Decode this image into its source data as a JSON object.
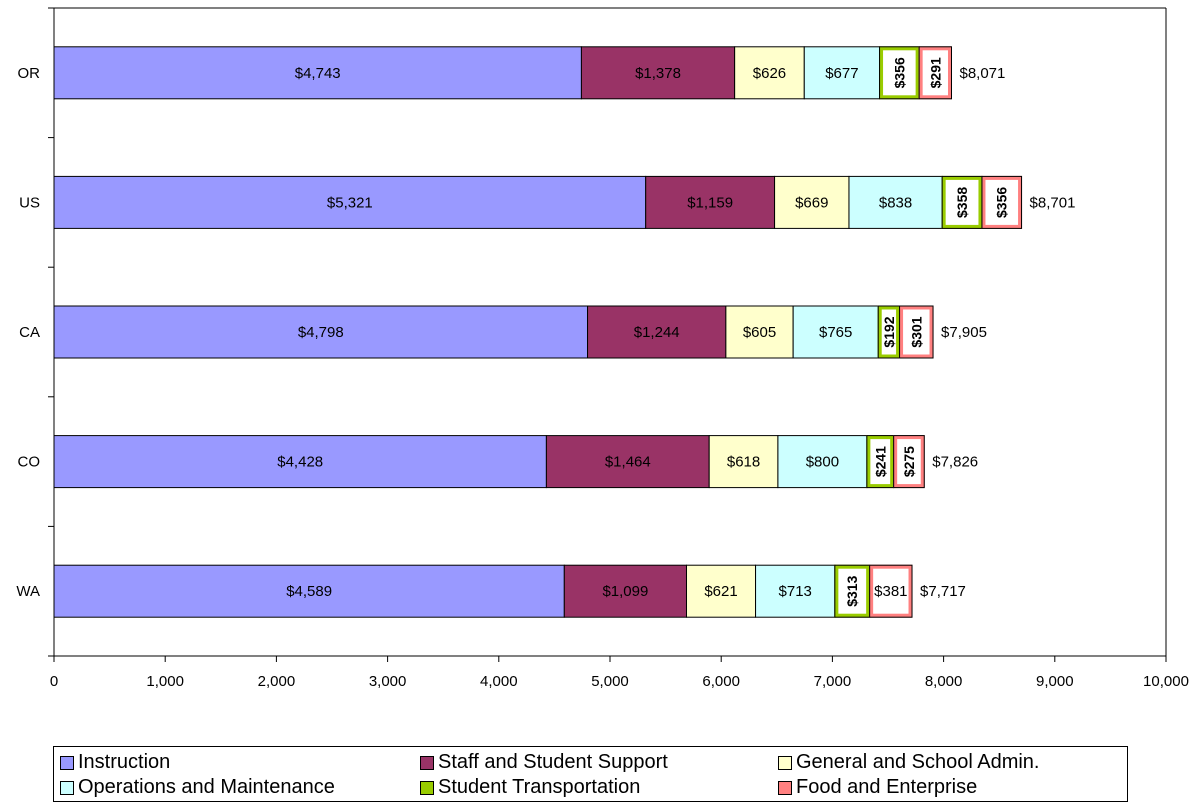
{
  "chart_data": {
    "type": "bar",
    "orientation": "horizontal",
    "stacked": true,
    "categories": [
      "OR",
      "US",
      "CA",
      "CO",
      "WA"
    ],
    "series": [
      {
        "name": "Instruction",
        "color": "#9999ff",
        "border": "#000000",
        "values": [
          4743,
          5321,
          4798,
          4428,
          4589
        ],
        "labels": [
          "$4,743",
          "$5,321",
          "$4,798",
          "$4,428",
          "$4,589"
        ]
      },
      {
        "name": "Staff and Student Support",
        "color": "#993366",
        "border": "#000000",
        "values": [
          1378,
          1159,
          1244,
          1464,
          1099
        ],
        "labels": [
          "$1,378",
          "$1,159",
          "$1,244",
          "$1,464",
          "$1,099"
        ]
      },
      {
        "name": "General and School Admin.",
        "color": "#ffffcc",
        "border": "#000000",
        "values": [
          626,
          669,
          605,
          618,
          621
        ],
        "labels": [
          "$626",
          "$669",
          "$605",
          "$618",
          "$621"
        ]
      },
      {
        "name": "Operations and Maintenance",
        "color": "#ccffff",
        "border": "#000000",
        "values": [
          677,
          838,
          765,
          800,
          713
        ],
        "labels": [
          "$677",
          "$838",
          "$765",
          "$800",
          "$713"
        ]
      },
      {
        "name": "Student Transportation",
        "color": "#99cc00",
        "border": "#99cc00",
        "values": [
          356,
          358,
          192,
          241,
          313
        ],
        "labels": [
          "$356",
          "$358",
          "$192",
          "$241",
          "$313"
        ]
      },
      {
        "name": "Food and Enterprise",
        "color": "#ff8080",
        "border": "#ff8080",
        "values": [
          291,
          356,
          301,
          275,
          381
        ],
        "labels": [
          "$291",
          "$356",
          "$301",
          "$275",
          "$381"
        ]
      }
    ],
    "totals": [
      8071,
      8701,
      7905,
      7826,
      7717
    ],
    "total_labels": [
      "$8,071",
      "$8,701",
      "$7,905",
      "$7,826",
      "$7,717"
    ],
    "xlim": [
      0,
      10000
    ],
    "xticks": [
      0,
      1000,
      2000,
      3000,
      4000,
      5000,
      6000,
      7000,
      8000,
      9000,
      10000
    ],
    "xtick_labels": [
      "0",
      "1,000",
      "2,000",
      "3,000",
      "4,000",
      "5,000",
      "6,000",
      "7,000",
      "8,000",
      "9,000",
      "10,000"
    ],
    "grid": false,
    "legend_position": "bottom"
  }
}
